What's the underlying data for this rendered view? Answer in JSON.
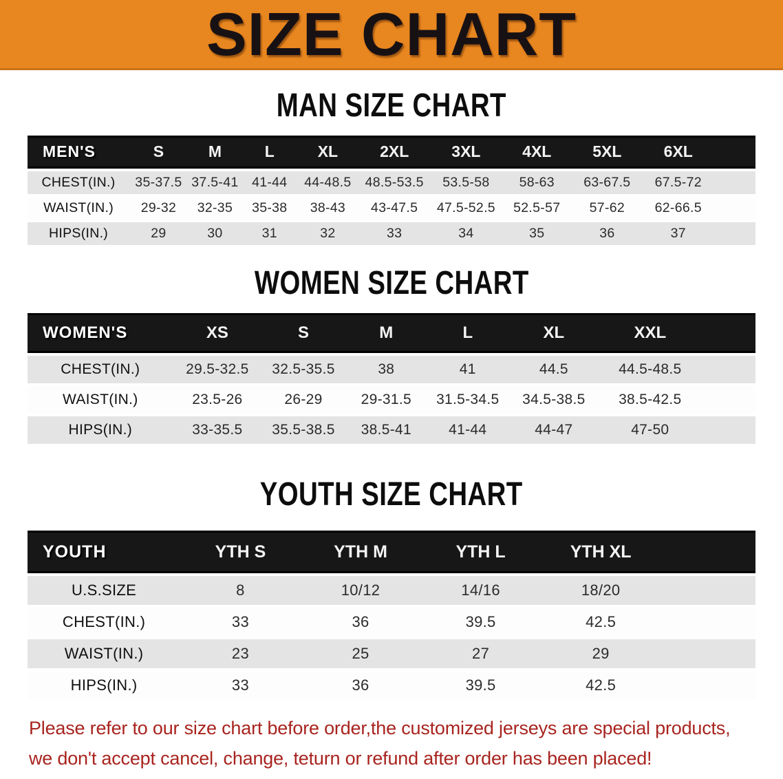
{
  "banner": {
    "title": "SIZE CHART",
    "bg_color": "#E8861F"
  },
  "sections": [
    {
      "heading": "MAN SIZE CHART",
      "corner_label": "MEN'S",
      "columns": [
        "S",
        "M",
        "L",
        "XL",
        "2XL",
        "3XL",
        "4XL",
        "5XL",
        "6XL"
      ],
      "rows": [
        {
          "label": "CHEST(IN.)",
          "values": [
            "35-37.5",
            "37.5-41",
            "41-44",
            "44-48.5",
            "48.5-53.5",
            "53.5-58",
            "58-63",
            "63-67.5",
            "67.5-72"
          ]
        },
        {
          "label": "WAIST(IN.)",
          "values": [
            "29-32",
            "32-35",
            "35-38",
            "38-43",
            "43-47.5",
            "47.5-52.5",
            "52.5-57",
            "57-62",
            "62-66.5"
          ]
        },
        {
          "label": "HIPS(IN.)",
          "values": [
            "29",
            "30",
            "31",
            "32",
            "33",
            "34",
            "35",
            "36",
            "37"
          ]
        }
      ]
    },
    {
      "heading": "WOMEN SIZE CHART",
      "corner_label": "WOMEN'S",
      "columns": [
        "XS",
        "S",
        "M",
        "L",
        "XL",
        "XXL"
      ],
      "rows": [
        {
          "label": "CHEST(IN.)",
          "values": [
            "29.5-32.5",
            "32.5-35.5",
            "38",
            "41",
            "44.5",
            "44.5-48.5"
          ]
        },
        {
          "label": "WAIST(IN.)",
          "values": [
            "23.5-26",
            "26-29",
            "29-31.5",
            "31.5-34.5",
            "34.5-38.5",
            "38.5-42.5"
          ]
        },
        {
          "label": "HIPS(IN.)",
          "values": [
            "33-35.5",
            "35.5-38.5",
            "38.5-41",
            "41-44",
            "44-47",
            "47-50"
          ]
        }
      ]
    },
    {
      "heading": "YOUTH SIZE CHART",
      "corner_label": "YOUTH",
      "columns": [
        "YTH S",
        "YTH M",
        "YTH L",
        "YTH XL"
      ],
      "rows": [
        {
          "label": "U.S.SIZE",
          "values": [
            "8",
            "10/12",
            "14/16",
            "18/20"
          ]
        },
        {
          "label": "CHEST(IN.)",
          "values": [
            "33",
            "36",
            "39.5",
            "42.5"
          ]
        },
        {
          "label": "WAIST(IN.)",
          "values": [
            "23",
            "25",
            "27",
            "29"
          ]
        },
        {
          "label": "HIPS(IN.)",
          "values": [
            "33",
            "36",
            "39.5",
            "42.5"
          ]
        }
      ]
    }
  ],
  "footer": {
    "line1": "Please refer to our size chart before order,the customized jerseys are special products,",
    "line2": "we don't accept cancel, change, teturn or refund after order has been placed!",
    "text_color": "#A8241F"
  },
  "colors": {
    "banner_orange": "#E8861F",
    "header_band": "#171717",
    "row_alt": "#E4E4E4"
  }
}
